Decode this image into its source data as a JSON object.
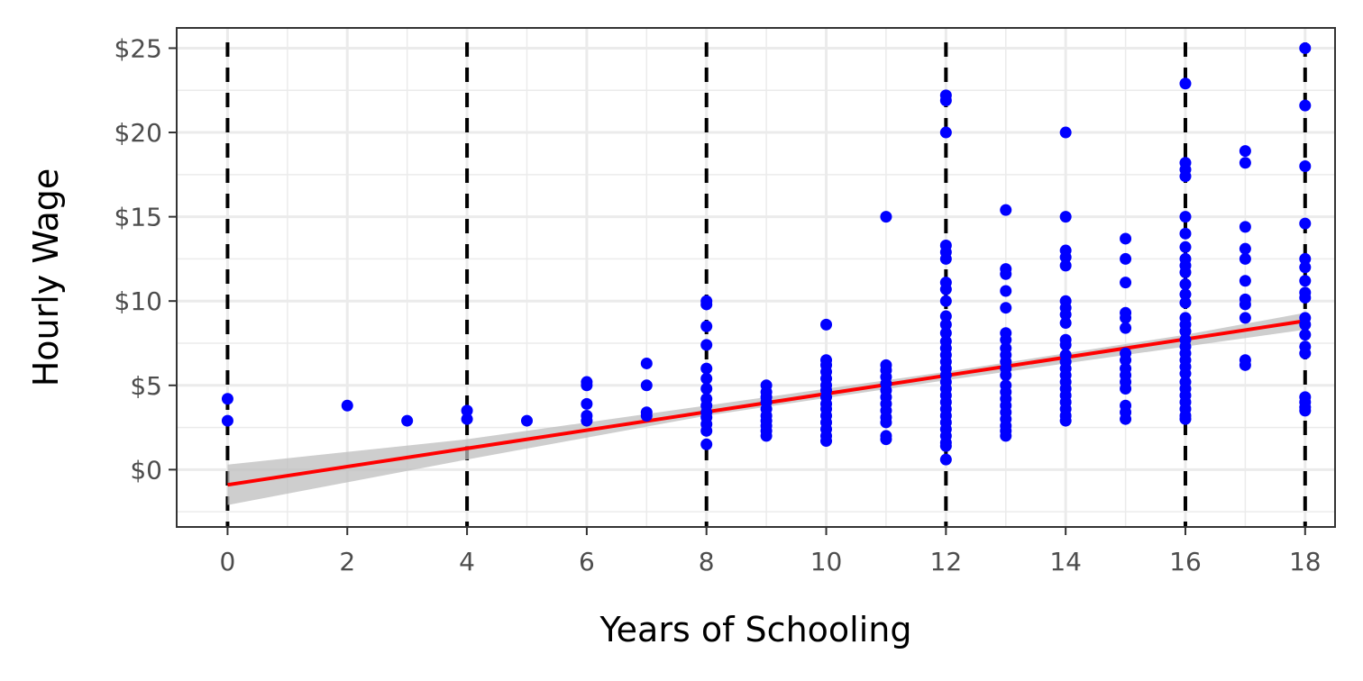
{
  "chart_data": {
    "type": "scatter",
    "title": "",
    "xlabel": "Years of Schooling",
    "ylabel": "Hourly Wage",
    "xlim": [
      -0.85,
      18.5
    ],
    "ylim": [
      -3.4,
      26.2
    ],
    "x_ticks": [
      0,
      2,
      4,
      6,
      8,
      10,
      12,
      14,
      16,
      18
    ],
    "x_tick_labels": [
      "0",
      "2",
      "4",
      "6",
      "8",
      "10",
      "12",
      "14",
      "16",
      "18"
    ],
    "y_ticks": [
      0,
      5,
      10,
      15,
      20,
      25
    ],
    "y_tick_labels": [
      "$0",
      "$5",
      "$10",
      "$15",
      "$20",
      "$25"
    ],
    "grid": true,
    "vlines": [
      0,
      4,
      8,
      12,
      16,
      18
    ],
    "colors": {
      "points": "#0000ff",
      "fit_line": "#ff0000",
      "ci_band": "#bebebe",
      "vlines": "#000000",
      "grid": "#ebebeb",
      "panel_border": "#333333"
    },
    "fit": {
      "intercept": -0.9,
      "slope": 0.54,
      "x_range": [
        0,
        18
      ],
      "ci_lower": [
        [
          0,
          -2.1
        ],
        [
          4,
          0.6
        ],
        [
          8,
          3.2
        ],
        [
          12,
          5.3
        ],
        [
          16,
          7.3
        ],
        [
          18,
          8.3
        ]
      ],
      "ci_upper": [
        [
          0,
          0.3
        ],
        [
          4,
          1.8
        ],
        [
          8,
          3.8
        ],
        [
          12,
          5.8
        ],
        [
          16,
          8.0
        ],
        [
          18,
          9.3
        ]
      ]
    },
    "points": [
      [
        0,
        4.2
      ],
      [
        0,
        2.9
      ],
      [
        2,
        3.8
      ],
      [
        3,
        2.9
      ],
      [
        4,
        3.5
      ],
      [
        4,
        3.0
      ],
      [
        5,
        2.9
      ],
      [
        6,
        5.2
      ],
      [
        6,
        5.0
      ],
      [
        6,
        3.9
      ],
      [
        6,
        3.2
      ],
      [
        6,
        2.9
      ],
      [
        7,
        6.3
      ],
      [
        7,
        5.0
      ],
      [
        7,
        3.4
      ],
      [
        7,
        3.2
      ],
      [
        8,
        10.0
      ],
      [
        8,
        9.8
      ],
      [
        8,
        8.5
      ],
      [
        8,
        7.4
      ],
      [
        8,
        6.0
      ],
      [
        8,
        5.4
      ],
      [
        8,
        4.8
      ],
      [
        8,
        4.2
      ],
      [
        8,
        3.8
      ],
      [
        8,
        3.4
      ],
      [
        8,
        3.1
      ],
      [
        8,
        2.7
      ],
      [
        8,
        2.3
      ],
      [
        8,
        1.5
      ],
      [
        9,
        5.0
      ],
      [
        9,
        4.6
      ],
      [
        9,
        4.3
      ],
      [
        9,
        4.0
      ],
      [
        9,
        3.6
      ],
      [
        9,
        3.2
      ],
      [
        9,
        2.9
      ],
      [
        9,
        2.6
      ],
      [
        9,
        2.3
      ],
      [
        9,
        2.0
      ],
      [
        10,
        8.6
      ],
      [
        10,
        6.5
      ],
      [
        10,
        6.2
      ],
      [
        10,
        5.8
      ],
      [
        10,
        5.4
      ],
      [
        10,
        5.0
      ],
      [
        10,
        4.7
      ],
      [
        10,
        4.3
      ],
      [
        10,
        3.9
      ],
      [
        10,
        3.6
      ],
      [
        10,
        3.2
      ],
      [
        10,
        2.8
      ],
      [
        10,
        2.4
      ],
      [
        10,
        2.0
      ],
      [
        10,
        1.7
      ],
      [
        11,
        15.0
      ],
      [
        11,
        6.2
      ],
      [
        11,
        5.9
      ],
      [
        11,
        5.5
      ],
      [
        11,
        5.1
      ],
      [
        11,
        4.7
      ],
      [
        11,
        4.3
      ],
      [
        11,
        3.9
      ],
      [
        11,
        3.5
      ],
      [
        11,
        3.1
      ],
      [
        11,
        2.8
      ],
      [
        11,
        2.0
      ],
      [
        11,
        1.8
      ],
      [
        12,
        22.2
      ],
      [
        12,
        21.9
      ],
      [
        12,
        20.0
      ],
      [
        12,
        13.3
      ],
      [
        12,
        12.9
      ],
      [
        12,
        12.5
      ],
      [
        12,
        11.1
      ],
      [
        12,
        10.7
      ],
      [
        12,
        10.0
      ],
      [
        12,
        9.1
      ],
      [
        12,
        8.6
      ],
      [
        12,
        8.1
      ],
      [
        12,
        7.6
      ],
      [
        12,
        7.2
      ],
      [
        12,
        6.8
      ],
      [
        12,
        6.4
      ],
      [
        12,
        6.0
      ],
      [
        12,
        5.6
      ],
      [
        12,
        5.2
      ],
      [
        12,
        4.8
      ],
      [
        12,
        4.4
      ],
      [
        12,
        4.0
      ],
      [
        12,
        3.6
      ],
      [
        12,
        3.2
      ],
      [
        12,
        2.8
      ],
      [
        12,
        2.4
      ],
      [
        12,
        2.0
      ],
      [
        12,
        1.6
      ],
      [
        12,
        1.4
      ],
      [
        12,
        0.6
      ],
      [
        13,
        15.4
      ],
      [
        13,
        11.9
      ],
      [
        13,
        11.6
      ],
      [
        13,
        10.6
      ],
      [
        13,
        9.6
      ],
      [
        13,
        8.1
      ],
      [
        13,
        7.7
      ],
      [
        13,
        7.2
      ],
      [
        13,
        6.8
      ],
      [
        13,
        6.4
      ],
      [
        13,
        6.0
      ],
      [
        13,
        5.6
      ],
      [
        13,
        5.0
      ],
      [
        13,
        4.6
      ],
      [
        13,
        4.2
      ],
      [
        13,
        3.8
      ],
      [
        13,
        3.4
      ],
      [
        13,
        3.0
      ],
      [
        13,
        2.6
      ],
      [
        13,
        2.3
      ],
      [
        13,
        2.0
      ],
      [
        14,
        20.0
      ],
      [
        14,
        15.0
      ],
      [
        14,
        13.0
      ],
      [
        14,
        12.6
      ],
      [
        14,
        12.1
      ],
      [
        14,
        10.0
      ],
      [
        14,
        9.6
      ],
      [
        14,
        9.2
      ],
      [
        14,
        8.7
      ],
      [
        14,
        7.7
      ],
      [
        14,
        7.4
      ],
      [
        14,
        6.8
      ],
      [
        14,
        6.4
      ],
      [
        14,
        6.0
      ],
      [
        14,
        5.6
      ],
      [
        14,
        5.2
      ],
      [
        14,
        4.8
      ],
      [
        14,
        4.4
      ],
      [
        14,
        4.0
      ],
      [
        14,
        3.6
      ],
      [
        14,
        3.2
      ],
      [
        14,
        2.9
      ],
      [
        15,
        13.7
      ],
      [
        15,
        12.5
      ],
      [
        15,
        11.1
      ],
      [
        15,
        9.3
      ],
      [
        15,
        9.0
      ],
      [
        15,
        8.4
      ],
      [
        15,
        6.9
      ],
      [
        15,
        6.5
      ],
      [
        15,
        6.0
      ],
      [
        15,
        5.6
      ],
      [
        15,
        5.2
      ],
      [
        15,
        4.8
      ],
      [
        15,
        3.8
      ],
      [
        15,
        3.4
      ],
      [
        15,
        3.0
      ],
      [
        16,
        22.9
      ],
      [
        16,
        18.2
      ],
      [
        16,
        17.8
      ],
      [
        16,
        17.4
      ],
      [
        16,
        15.0
      ],
      [
        16,
        14.0
      ],
      [
        16,
        13.2
      ],
      [
        16,
        12.5
      ],
      [
        16,
        12.1
      ],
      [
        16,
        11.7
      ],
      [
        16,
        11.0
      ],
      [
        16,
        10.4
      ],
      [
        16,
        9.9
      ],
      [
        16,
        9.0
      ],
      [
        16,
        8.6
      ],
      [
        16,
        8.2
      ],
      [
        16,
        7.7
      ],
      [
        16,
        7.3
      ],
      [
        16,
        6.9
      ],
      [
        16,
        6.5
      ],
      [
        16,
        6.1
      ],
      [
        16,
        5.7
      ],
      [
        16,
        5.2
      ],
      [
        16,
        4.8
      ],
      [
        16,
        4.4
      ],
      [
        16,
        4.0
      ],
      [
        16,
        3.6
      ],
      [
        16,
        3.2
      ],
      [
        16,
        3.0
      ],
      [
        17,
        18.9
      ],
      [
        17,
        18.2
      ],
      [
        17,
        14.4
      ],
      [
        17,
        13.1
      ],
      [
        17,
        12.5
      ],
      [
        17,
        11.2
      ],
      [
        17,
        10.1
      ],
      [
        17,
        9.8
      ],
      [
        17,
        9.0
      ],
      [
        17,
        6.5
      ],
      [
        17,
        6.2
      ],
      [
        18,
        25.0
      ],
      [
        18,
        21.6
      ],
      [
        18,
        18.0
      ],
      [
        18,
        14.6
      ],
      [
        18,
        12.5
      ],
      [
        18,
        12.0
      ],
      [
        18,
        11.2
      ],
      [
        18,
        10.5
      ],
      [
        18,
        10.2
      ],
      [
        18,
        9.0
      ],
      [
        18,
        8.6
      ],
      [
        18,
        8.0
      ],
      [
        18,
        7.3
      ],
      [
        18,
        6.9
      ],
      [
        18,
        4.3
      ],
      [
        18,
        4.0
      ],
      [
        18,
        3.7
      ],
      [
        18,
        3.5
      ]
    ]
  }
}
